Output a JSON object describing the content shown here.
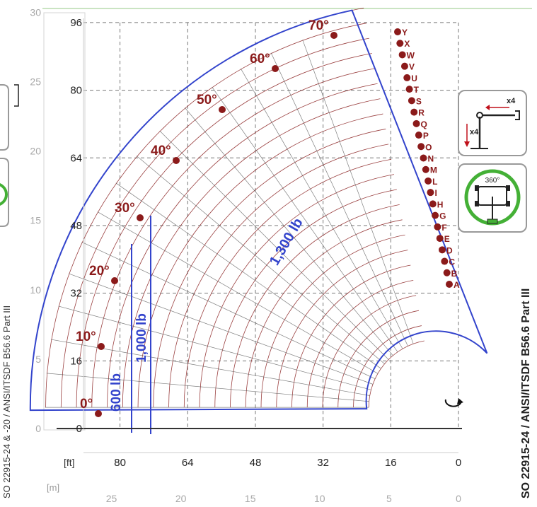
{
  "chart_data": {
    "type": "load-chart",
    "x_axis_ft": {
      "label": "[ft]",
      "ticks": [
        80,
        64,
        48,
        32,
        16,
        0
      ],
      "range": [
        86,
        0
      ],
      "direction": "reversed"
    },
    "x_axis_m": {
      "label": "[m]",
      "ticks": [
        25,
        20,
        15,
        10,
        5,
        0
      ]
    },
    "y_axis_ft": {
      "ticks": [
        0,
        16,
        32,
        48,
        64,
        80,
        96
      ],
      "range": [
        -2,
        98
      ]
    },
    "y_axis_m": {
      "ticks": [
        0,
        5,
        10,
        15,
        20,
        25,
        30
      ]
    },
    "grid": true,
    "angles": [
      "0°",
      "10°",
      "20°",
      "30°",
      "40°",
      "50°",
      "60°",
      "70°"
    ],
    "extension_letters": [
      "A",
      "B",
      "C",
      "D",
      "E",
      "F",
      "G",
      "H",
      "I",
      "L",
      "M",
      "N",
      "O",
      "P",
      "Q",
      "R",
      "S",
      "T",
      "U",
      "V",
      "W",
      "X",
      "Y"
    ],
    "load_zones": [
      {
        "label": "600 lb",
        "radius_ft_max": 83
      },
      {
        "label": "1,000 lb",
        "radius_ft_max": 77.5
      },
      {
        "label": "1,300 lb",
        "radius_ft_max": 72
      }
    ],
    "side_text": "SO 22915-24 / ANSI/ITSDF B56.6 Part III",
    "left_side_text": "SO 22915-24 & -20 / ANSI/ITSDF B56.6 Part III",
    "icons": {
      "outrigger_label": "x4",
      "rotation_label": "360°"
    },
    "colors": {
      "envelope": "#3344cc",
      "grid_lines": "#8a2020",
      "markers": "#8b1a1a",
      "angle_text": "#8b1a1a",
      "axis": "#333333",
      "dashed_grid": "#777777",
      "icon_green": "#44b036"
    }
  }
}
